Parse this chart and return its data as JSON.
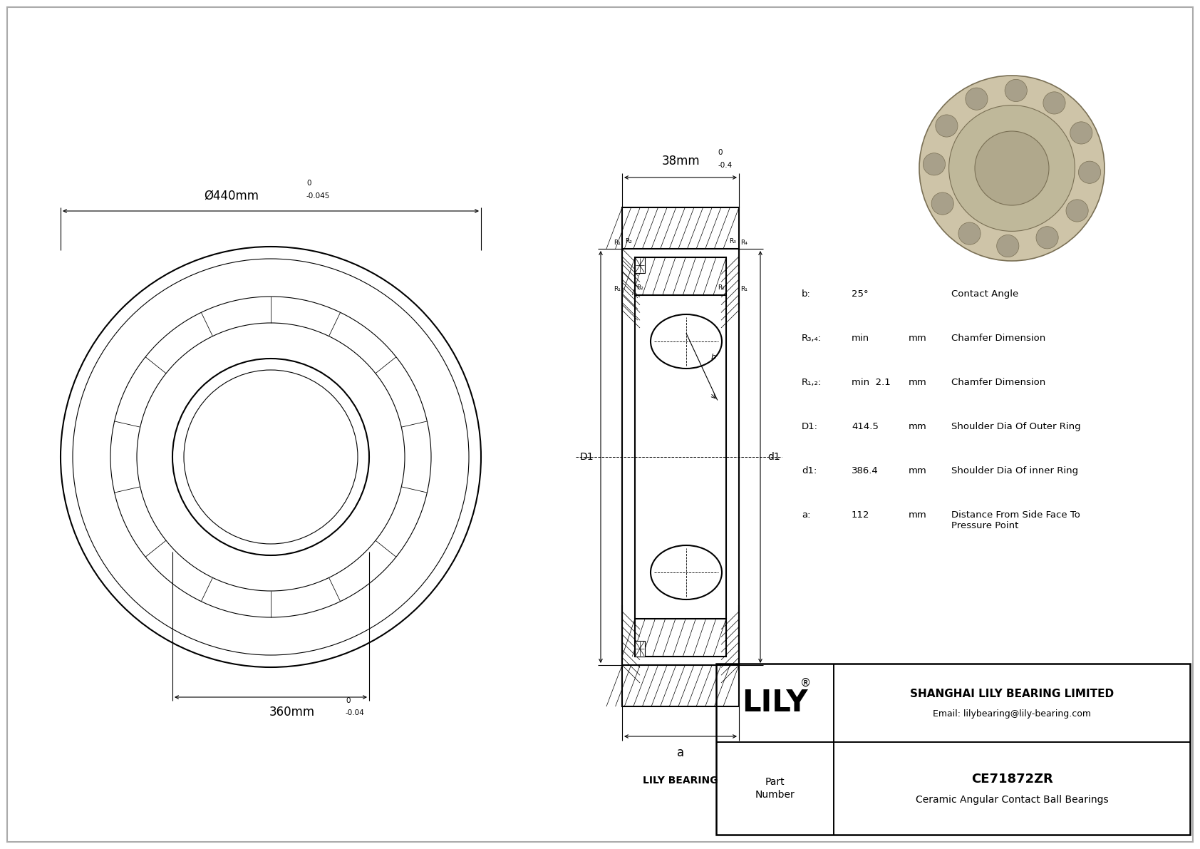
{
  "bg_color": "#ffffff",
  "line_color": "#000000",
  "title": "CE71872ZR",
  "subtitle": "Ceramic Angular Contact Ball Bearings",
  "company": "SHANGHAI LILY BEARING LIMITED",
  "email": "Email: lilybearing@lily-bearing.com",
  "lily_text": "LILY",
  "part_label": "Part\nNumber",
  "lily_bearing_label": "LILY BEARING",
  "outer_dia_label": "Ø440mm",
  "outer_dia_tol": "-0.045",
  "outer_dia_tol_upper": "0",
  "inner_dia_label": "360mm",
  "inner_dia_tol": "-0.04",
  "inner_dia_tol_upper": "0",
  "width_label": "38mm",
  "width_tol": "-0.4",
  "width_tol_upper": "0",
  "params": [
    {
      "sym": "b:",
      "val": "25°",
      "unit": "",
      "desc": "Contact Angle"
    },
    {
      "sym": "R₃,₄:",
      "val": "min",
      "unit": "mm",
      "desc": "Chamfer Dimension"
    },
    {
      "sym": "R₁,₂:",
      "val": "min  2.1",
      "unit": "mm",
      "desc": "Chamfer Dimension"
    },
    {
      "sym": "D1:",
      "val": "414.5",
      "unit": "mm",
      "desc": "Shoulder Dia Of Outer Ring"
    },
    {
      "sym": "d1:",
      "val": "386.4",
      "unit": "mm",
      "desc": "Shoulder Dia Of inner Ring"
    },
    {
      "sym": "a:",
      "val": "112",
      "unit": "mm",
      "desc": "Distance From Side Face To\nPressure Point"
    }
  ]
}
